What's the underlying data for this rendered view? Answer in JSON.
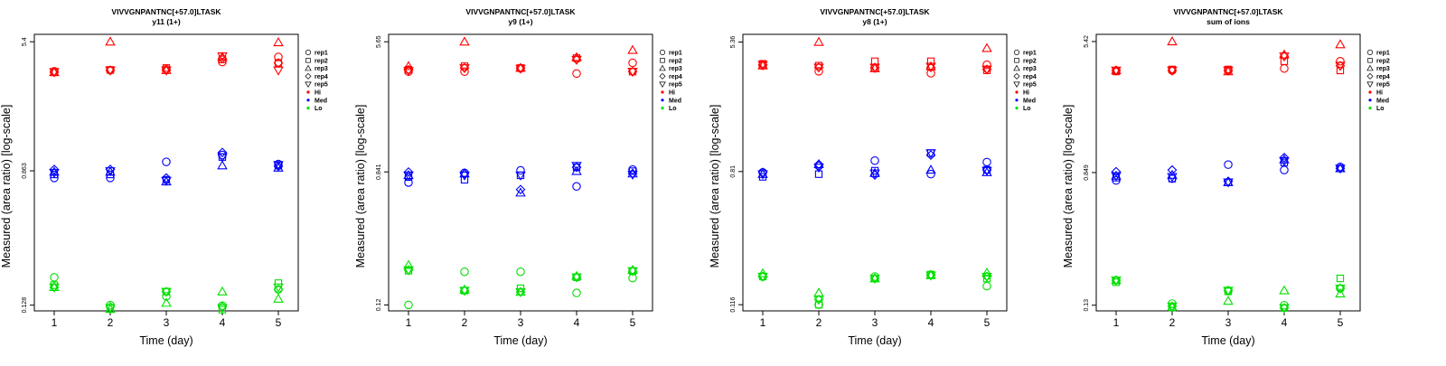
{
  "chart_data": [
    {
      "type": "scatter",
      "title": "VIVVGNPANTNC[+57.0]LTASK",
      "subtitle": "y11 (1+)",
      "xlabel": "Time (day)",
      "ylabel": "Measured (area ratio) [log-scale]",
      "x_ticks": [
        "1",
        "2",
        "3",
        "4",
        "5"
      ],
      "y_tick_labels": [
        "0.128",
        "0.863",
        "5.4"
      ],
      "log_scale": true,
      "ylim": [
        0.118,
        6.0
      ],
      "legend": {
        "position": "right",
        "replicates": [
          "rep1",
          "rep2",
          "rep3",
          "rep4",
          "rep5"
        ],
        "levels": [
          "Hi",
          "Med",
          "Lo"
        ]
      },
      "colors": {
        "Hi": "#ff0000",
        "Med": "#0000ff",
        "Lo": "#00e000"
      },
      "series": [
        {
          "level": "Hi",
          "values": {
            "rep1": [
              3.55,
              3.6,
              3.65,
              4.05,
              4.35
            ],
            "rep2": [
              3.5,
              3.62,
              3.72,
              4.2,
              4.0
            ],
            "rep3": [
              3.5,
              5.4,
              3.6,
              4.35,
              5.35
            ],
            "rep4": [
              3.5,
              3.6,
              3.6,
              4.25,
              4.0
            ],
            "rep5": [
              3.52,
              3.6,
              3.6,
              4.4,
              3.6
            ]
          }
        },
        {
          "level": "Med",
          "values": {
            "rep1": [
              0.78,
              0.78,
              0.98,
              1.08,
              0.95
            ],
            "rep2": [
              0.82,
              0.82,
              0.76,
              1.05,
              0.93
            ],
            "rep3": [
              0.85,
              0.85,
              0.74,
              0.93,
              0.9
            ],
            "rep4": [
              0.88,
              0.88,
              0.78,
              1.12,
              0.92
            ],
            "rep5": [
              0.84,
              0.86,
              0.75,
              1.05,
              0.94
            ]
          }
        },
        {
          "level": "Lo",
          "values": {
            "rep1": [
              0.19,
              0.128,
              0.145,
              0.127,
              0.16
            ],
            "rep2": [
              0.17,
              0.122,
              0.155,
              0.12,
              0.175
            ],
            "rep3": [
              0.165,
              0.121,
              0.132,
              0.155,
              0.14
            ],
            "rep4": [
              0.165,
              0.125,
              0.155,
              0.125,
              0.16
            ],
            "rep5": [
              0.165,
              0.123,
              0.155,
              0.123,
              0.165
            ]
          }
        }
      ]
    },
    {
      "type": "scatter",
      "title": "VIVVGNPANTNC[+57.0]LTASK",
      "subtitle": "y9 (1+)",
      "xlabel": "Time (day)",
      "ylabel": "Measured (area ratio) [log-scale]",
      "x_ticks": [
        "1",
        "2",
        "3",
        "4",
        "5"
      ],
      "y_tick_labels": [
        "0.12",
        "0.841",
        "5.65"
      ],
      "log_scale": true,
      "ylim": [
        0.11,
        6.3
      ],
      "legend": {
        "position": "right",
        "replicates": [
          "rep1",
          "rep2",
          "rep3",
          "rep4",
          "rep5"
        ],
        "levels": [
          "Hi",
          "Med",
          "Lo"
        ]
      },
      "colors": {
        "Hi": "#ff0000",
        "Med": "#0000ff",
        "Lo": "#00e000"
      },
      "series": [
        {
          "level": "Hi",
          "values": {
            "rep1": [
              3.65,
              3.65,
              3.82,
              3.55,
              4.15
            ],
            "rep2": [
              3.75,
              3.95,
              3.85,
              4.45,
              3.65
            ],
            "rep3": [
              3.95,
              5.65,
              3.85,
              4.5,
              5.0
            ],
            "rep4": [
              3.75,
              3.85,
              3.85,
              4.35,
              3.65
            ],
            "rep5": [
              3.7,
              3.85,
              3.82,
              4.35,
              3.65
            ]
          }
        },
        {
          "level": "Med",
          "values": {
            "rep1": [
              0.72,
              0.83,
              0.86,
              0.68,
              0.87
            ],
            "rep2": [
              0.78,
              0.75,
              0.8,
              0.9,
              0.85
            ],
            "rep3": [
              0.8,
              0.82,
              0.62,
              0.85,
              0.82
            ],
            "rep4": [
              0.84,
              0.82,
              0.65,
              0.9,
              0.82
            ],
            "rep5": [
              0.8,
              0.8,
              0.8,
              0.92,
              0.81
            ]
          }
        },
        {
          "level": "Lo",
          "values": {
            "rep1": [
              0.12,
              0.195,
              0.195,
              0.143,
              0.178
            ],
            "rep2": [
              0.198,
              0.148,
              0.153,
              0.18,
              0.197
            ],
            "rep3": [
              0.215,
              0.15,
              0.145,
              0.183,
              0.2
            ],
            "rep4": [
              0.2,
              0.148,
              0.145,
              0.18,
              0.197
            ],
            "rep5": [
              0.2,
              0.148,
              0.145,
              0.18,
              0.197
            ]
          }
        }
      ]
    },
    {
      "type": "scatter",
      "title": "VIVVGNPANTNC[+57.0]LTASK",
      "subtitle": "y8 (1+)",
      "xlabel": "Time (day)",
      "ylabel": "Measured (area ratio) [log-scale]",
      "x_ticks": [
        "1",
        "2",
        "3",
        "4",
        "5"
      ],
      "y_tick_labels": [
        "0.116",
        "0.81",
        "5.36"
      ],
      "log_scale": true,
      "ylim": [
        0.106,
        6.0
      ],
      "legend": {
        "position": "right",
        "replicates": [
          "rep1",
          "rep2",
          "rep3",
          "rep4",
          "rep5"
        ],
        "levels": [
          "Hi",
          "Med",
          "Lo"
        ]
      },
      "colors": {
        "Hi": "#ff0000",
        "Med": "#0000ff",
        "Lo": "#00e000"
      },
      "series": [
        {
          "level": "Hi",
          "values": {
            "rep1": [
              3.8,
              3.5,
              3.65,
              3.4,
              3.85
            ],
            "rep2": [
              3.9,
              3.8,
              4.05,
              4.05,
              3.55
            ],
            "rep3": [
              3.8,
              5.36,
              3.65,
              3.75,
              4.9
            ],
            "rep4": [
              3.85,
              3.7,
              3.7,
              3.7,
              3.6
            ],
            "rep5": [
              3.85,
              3.7,
              3.7,
              3.75,
              3.6
            ]
          }
        },
        {
          "level": "Med",
          "values": {
            "rep1": [
              0.8,
              0.88,
              0.95,
              0.78,
              0.93
            ],
            "rep2": [
              0.75,
              0.78,
              0.82,
              1.06,
              0.83
            ],
            "rep3": [
              0.78,
              0.9,
              0.79,
              0.83,
              0.8
            ],
            "rep4": [
              0.8,
              0.9,
              0.77,
              1.03,
              0.83
            ],
            "rep5": [
              0.78,
              0.86,
              0.79,
              1.06,
              0.82
            ]
          }
        },
        {
          "level": "Lo",
          "values": {
            "rep1": [
              0.175,
              0.116,
              0.175,
              0.18,
              0.152
            ],
            "rep2": [
              0.175,
              0.116,
              0.17,
              0.18,
              0.17
            ],
            "rep3": [
              0.183,
              0.138,
              0.17,
              0.178,
              0.185
            ],
            "rep4": [
              0.175,
              0.125,
              0.17,
              0.178,
              0.175
            ],
            "rep5": [
              0.175,
              0.125,
              0.17,
              0.178,
              0.175
            ]
          }
        }
      ]
    },
    {
      "type": "scatter",
      "title": "VIVVGNPANTNC[+57.0]LTASK",
      "subtitle": "sum of ions",
      "xlabel": "Time (day)",
      "ylabel": "Measured (area ratio) [log-scale]",
      "x_ticks": [
        "1",
        "2",
        "3",
        "4",
        "5"
      ],
      "y_tick_labels": [
        "0.13",
        "0.849",
        "5.42"
      ],
      "log_scale": true,
      "ylim": [
        0.12,
        6.0
      ],
      "legend": {
        "position": "right",
        "replicates": [
          "rep1",
          "rep2",
          "rep3",
          "rep4",
          "rep5"
        ],
        "levels": [
          "Hi",
          "Med",
          "Lo"
        ]
      },
      "colors": {
        "Hi": "#ff0000",
        "Med": "#0000ff",
        "Lo": "#00e000"
      },
      "series": [
        {
          "level": "Hi",
          "values": {
            "rep1": [
              3.6,
              3.6,
              3.6,
              3.7,
              4.1
            ],
            "rep2": [
              3.55,
              3.65,
              3.65,
              4.1,
              3.6
            ],
            "rep3": [
              3.6,
              5.42,
              3.55,
              4.5,
              5.2
            ],
            "rep4": [
              3.6,
              3.6,
              3.6,
              4.4,
              3.85
            ],
            "rep5": [
              3.6,
              3.6,
              3.6,
              4.4,
              3.85
            ]
          }
        },
        {
          "level": "Med",
          "values": {
            "rep1": [
              0.76,
              0.78,
              0.95,
              0.88,
              0.92
            ],
            "rep2": [
              0.79,
              0.78,
              0.74,
              0.98,
              0.9
            ],
            "rep3": [
              0.81,
              0.82,
              0.74,
              1.02,
              0.9
            ],
            "rep4": [
              0.86,
              0.88,
              0.75,
              1.05,
              0.9
            ],
            "rep5": [
              0.81,
              0.8,
              0.74,
              1.0,
              0.9
            ]
          }
        },
        {
          "level": "Lo",
          "values": {
            "rep1": [
              0.185,
              0.133,
              0.16,
              0.13,
              0.165
            ],
            "rep2": [
              0.18,
              0.126,
              0.158,
              0.125,
              0.19
            ],
            "rep3": [
              0.185,
              0.127,
              0.138,
              0.16,
              0.153
            ],
            "rep4": [
              0.185,
              0.128,
              0.16,
              0.125,
              0.165
            ],
            "rep5": [
              0.185,
              0.128,
              0.16,
              0.125,
              0.165
            ]
          }
        }
      ]
    }
  ]
}
